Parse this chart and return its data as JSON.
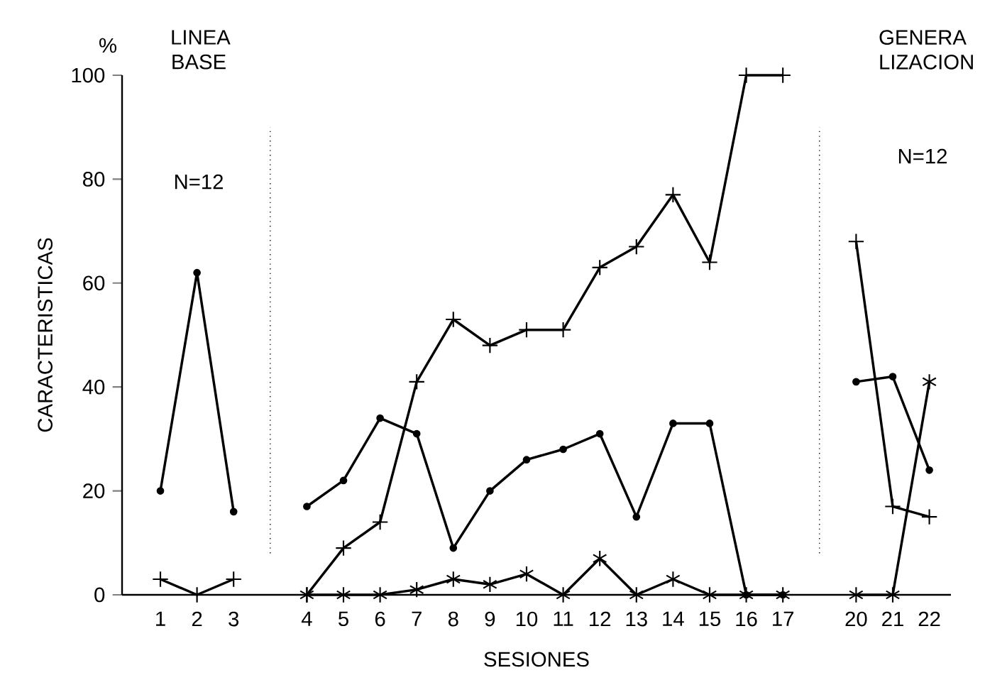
{
  "chart_data": {
    "type": "line",
    "ylabel": "CARACTERISTICAS",
    "xlabel": "SESIONES",
    "categories": [
      "1",
      "2",
      "3",
      null,
      "4",
      "5",
      "6",
      "7",
      "8",
      "9",
      "10",
      "11",
      "12",
      "13",
      "14",
      "15",
      "16",
      "17",
      null,
      "20",
      "21",
      "22"
    ],
    "series": [
      {
        "color": "#000000",
        "marker": "circle",
        "values": [
          20,
          62,
          16,
          null,
          17,
          22,
          34,
          31,
          9,
          20,
          26,
          28,
          31,
          15,
          33,
          33,
          0,
          0,
          null,
          41,
          42,
          24
        ]
      },
      {
        "color": "#000000",
        "marker": "cross",
        "values": [
          3,
          0,
          3,
          null,
          0,
          9,
          14,
          41,
          53,
          48,
          51,
          51,
          63,
          67,
          77,
          64,
          100,
          100,
          null,
          68,
          17,
          15
        ]
      },
      {
        "color": "#000000",
        "marker": "cross",
        "values": [
          null,
          null,
          null,
          null,
          0,
          0,
          0,
          1,
          3,
          2,
          4,
          0,
          7,
          0,
          3,
          0,
          0,
          0,
          null,
          0,
          0,
          41
        ]
      }
    ],
    "ylim": [
      0,
      100
    ],
    "yticks": [
      0,
      20,
      40,
      60,
      80,
      100
    ],
    "line_style": "solid",
    "annotations": [
      "%",
      "LINEA BASE",
      "N=12",
      "GENERA LIZACION",
      "N=12"
    ]
  }
}
